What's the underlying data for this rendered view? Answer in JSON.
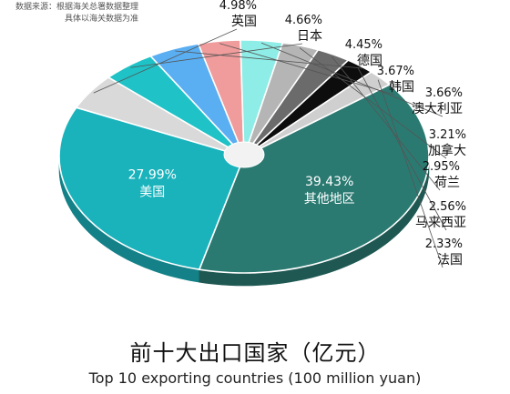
{
  "source_note": [
    "数据来源：根据海关总署数据整理",
    "具体以海关数据为准"
  ],
  "title": "前十大出口国家（亿元）",
  "subtitle": "Top 10 exporting countries (100 million yuan)",
  "chart_data": {
    "type": "pie",
    "unit": "%",
    "slices": [
      {
        "label": "美国",
        "value": 27.99,
        "color": "#1ab3bc",
        "label_inside": true
      },
      {
        "label": "英国",
        "value": 4.98,
        "color": "#d9d9d9",
        "label_inside": false
      },
      {
        "label": "日本",
        "value": 4.66,
        "color": "#1fc2c6",
        "label_inside": false
      },
      {
        "label": "德国",
        "value": 4.45,
        "color": "#5aaef2",
        "label_inside": false
      },
      {
        "label": "韩国",
        "value": 3.67,
        "color": "#f19c9c",
        "label_inside": false
      },
      {
        "label": "澳大利亚",
        "value": 3.66,
        "color": "#8eede6",
        "label_inside": false
      },
      {
        "label": "加拿大",
        "value": 3.21,
        "color": "#b5b5b5",
        "label_inside": false
      },
      {
        "label": "荷兰",
        "value": 2.95,
        "color": "#6b6b6b",
        "label_inside": false
      },
      {
        "label": "马来西亚",
        "value": 2.56,
        "color": "#0d0d0d",
        "label_inside": false
      },
      {
        "label": "法国",
        "value": 2.33,
        "color": "#cfcfcf",
        "label_inside": false
      },
      {
        "label": "其他地区",
        "value": 39.43,
        "color": "#2b7a72",
        "label_inside": true
      }
    ]
  }
}
